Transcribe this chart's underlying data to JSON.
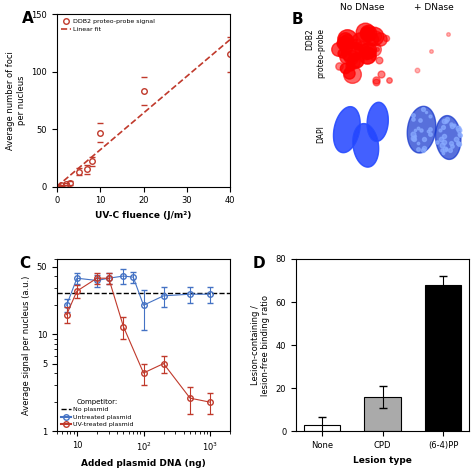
{
  "panel_A": {
    "x_data": [
      0,
      0.5,
      1,
      2,
      3,
      5,
      7,
      8,
      10,
      20,
      40
    ],
    "y_data": [
      0,
      0,
      1,
      2,
      3,
      13,
      15,
      22,
      47,
      83,
      115
    ],
    "y_err": [
      0,
      0,
      0.5,
      1,
      2,
      3,
      4,
      4,
      8,
      12,
      15
    ],
    "fit_x": [
      0,
      40
    ],
    "fit_y": [
      0,
      128
    ],
    "xlabel": "UV-C fluence (J/m²)",
    "ylabel": "Average number of foci\nper nucleus",
    "xlim": [
      0,
      40
    ],
    "ylim": [
      0,
      150
    ],
    "xticks": [
      0,
      10,
      20,
      30,
      40
    ],
    "yticks": [
      0,
      50,
      100,
      150
    ],
    "legend_signal": "DDB2 proteo-probe signal",
    "legend_fit": "Linear fit",
    "color": "#c0392b",
    "label": "A"
  },
  "panel_C": {
    "x_blue": [
      7,
      10,
      20,
      30,
      50,
      70,
      100,
      200,
      500,
      1000
    ],
    "y_blue": [
      20,
      38,
      36,
      38,
      40,
      39,
      20,
      25,
      26,
      26
    ],
    "yerr_blue": [
      3,
      5,
      5,
      5,
      7,
      5,
      9,
      6,
      5,
      5
    ],
    "x_red": [
      7,
      10,
      20,
      30,
      50,
      100,
      200,
      500,
      1000
    ],
    "y_red": [
      16,
      28,
      38,
      38,
      12,
      4,
      5,
      2.2,
      2
    ],
    "yerr_red": [
      3,
      4,
      5,
      5,
      3,
      1,
      1,
      0.7,
      0.5
    ],
    "dashed_y": 27,
    "xlabel": "Added plasmid DNA (ng)",
    "ylabel": "Average signal per nucleus (a.u.)",
    "xlim_log": [
      5,
      2000
    ],
    "ylim_log": [
      1,
      60
    ],
    "yticks": [
      1,
      5,
      10,
      50
    ],
    "ytick_labels": [
      "1",
      "5",
      "10",
      "50"
    ],
    "color_blue": "#4472c4",
    "color_red": "#c0392b",
    "label": "C",
    "legend_dashed": "No plasmid",
    "legend_blue": "Untreated plasmid",
    "legend_red": "UV-treated plasmid"
  },
  "panel_D": {
    "categories": [
      "None",
      "CPD",
      "(6-4)PP"
    ],
    "values": [
      3.0,
      16.0,
      68.0
    ],
    "yerr": [
      3.5,
      5.0,
      4.0
    ],
    "colors": [
      "#ffffff",
      "#aaaaaa",
      "#000000"
    ],
    "xlabel": "Lesion type",
    "ylabel": "Lesion-containing /\nlesion-free binding ratio",
    "ylim": [
      0,
      80
    ],
    "yticks": [
      0,
      20,
      40,
      60,
      80
    ],
    "label": "D",
    "edgecolor": "#000000"
  },
  "panel_B": {
    "label": "B",
    "row_labels": [
      "DDB2\nproteo-probe",
      "DAPI"
    ],
    "col_labels": [
      "No DNase",
      "+ DNase"
    ]
  }
}
